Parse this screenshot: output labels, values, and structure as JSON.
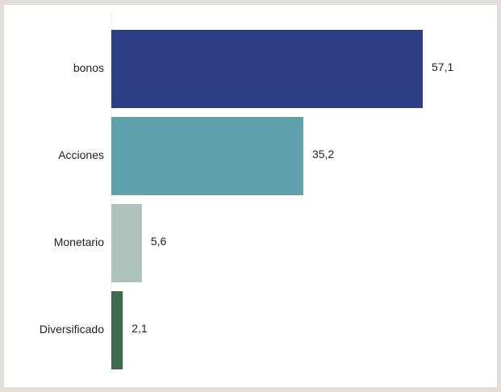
{
  "chart_data": {
    "type": "bar",
    "orientation": "horizontal",
    "categories": [
      "bonos",
      "Acciones",
      "Monetario",
      "Diversificado"
    ],
    "values": [
      57.1,
      35.2,
      5.6,
      2.1
    ],
    "value_labels": [
      "57,1",
      "35,2",
      "5,6",
      "2,1"
    ],
    "colors": [
      "#2e3e85",
      "#5ea1ad",
      "#adc2ba",
      "#3e6b4d"
    ],
    "title": "",
    "xlabel": "",
    "ylabel": "",
    "xlim": [
      0,
      57.1
    ],
    "grid": false,
    "legend": "none"
  }
}
